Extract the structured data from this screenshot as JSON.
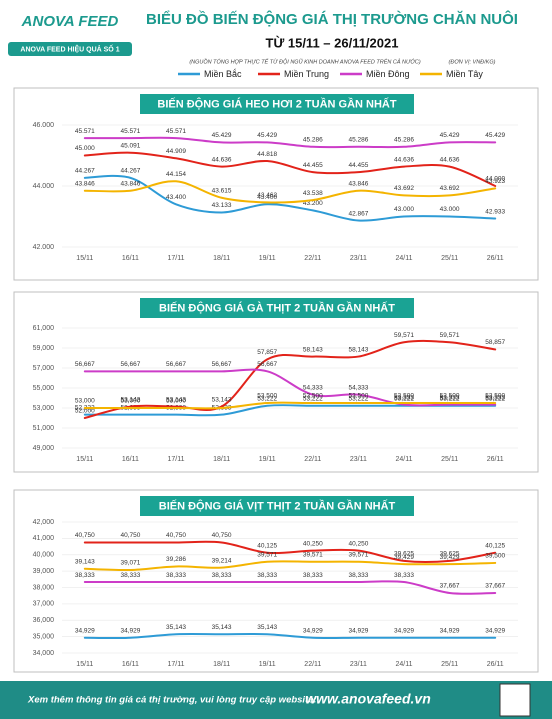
{
  "header": {
    "logo": "ANOVA FEED",
    "slogan": "ANOVA FEED HIỆU QUẢ SỐ 1",
    "title": "BIỂU ĐỒ BIẾN ĐỘNG GIÁ THỊ TRƯỜNG CHĂN NUÔI",
    "subtitle": "TỪ 15/11 – 26/11/2021",
    "source": "(NGUỒN TỔNG HỢP THỰC TẾ TỪ ĐỘI NGŨ KINH DOANH ANOVA FEED TRÊN CẢ NƯỚC)",
    "unit": "(ĐƠN VỊ: VNĐ/KG)"
  },
  "chart_data": [
    {
      "type": "line",
      "title": "BIẾN ĐỘNG GIÁ HEO HƠI 2 TUẦN GẦN NHẤT",
      "categories": [
        "15/11",
        "16/11",
        "17/11",
        "18/11",
        "19/11",
        "22/11",
        "23/11",
        "24/11",
        "25/11",
        "26/11"
      ],
      "series": [
        {
          "name": "Miền Bắc",
          "color": "#2e9bd6",
          "values": [
            44267,
            44267,
            43400,
            43133,
            43400,
            43200,
            42867,
            43000,
            43000,
            42933
          ],
          "value_labels": [
            "44.267",
            "44.267",
            "43.400",
            "43.133",
            "43.400",
            "43.200",
            "42.867",
            "43.000",
            "43.000",
            "42.933"
          ]
        },
        {
          "name": "Miền Trung",
          "color": "#e2231a",
          "values": [
            45000,
            45091,
            44909,
            44636,
            44818,
            44455,
            44455,
            44636,
            44636,
            44000
          ],
          "value_labels": [
            "45.000",
            "45.091",
            "44.909",
            "44.636",
            "44.818",
            "44.455",
            "44.455",
            "44.636",
            "44.636",
            "44.000"
          ]
        },
        {
          "name": "Miền Đông",
          "color": "#cc3cc8",
          "values": [
            45571,
            45571,
            45571,
            45429,
            45429,
            45286,
            45286,
            45286,
            45429,
            45429
          ],
          "value_labels": [
            "45.571",
            "45.571",
            "45.571",
            "45.429",
            "45.429",
            "45.286",
            "45.286",
            "45.286",
            "45.429",
            "45.429"
          ]
        },
        {
          "name": "Miền Tây",
          "color": "#f4b400",
          "values": [
            43846,
            43846,
            44154,
            43615,
            43462,
            43538,
            43846,
            43692,
            43692,
            43923
          ],
          "value_labels": [
            "43.846",
            "43.846",
            "44.154",
            "43.615",
            "43.462",
            "43.538",
            "43.846",
            "43.692",
            "43.692",
            "43.923"
          ]
        }
      ],
      "ylim": [
        42000,
        46000
      ],
      "yticks": [
        {
          "value": 42000,
          "label": "42.000"
        },
        {
          "value": 44000,
          "label": "44.000"
        },
        {
          "value": 46000,
          "label": "46.000"
        }
      ],
      "grid": true
    },
    {
      "type": "line",
      "title": "BIẾN ĐỘNG GIÁ GÀ THỊT 2 TUẦN GẦN NHẤT",
      "categories": [
        "15/11",
        "16/11",
        "17/11",
        "18/11",
        "19/11",
        "22/11",
        "23/11",
        "24/11",
        "25/11",
        "26/11"
      ],
      "series": [
        {
          "color": "#2e9bd6",
          "values": [
            52333,
            52333,
            52333,
            52333,
            53222,
            53222,
            53222,
            53222,
            53222,
            53222
          ],
          "value_labels": [
            "52,333",
            "52,333",
            "52,333",
            "52,333",
            "53,222",
            "53,222",
            "53,222",
            "53,222",
            "53,222",
            "53,222"
          ]
        },
        {
          "color": "#e2231a",
          "values": [
            52000,
            53143,
            53143,
            53143,
            57857,
            58143,
            58143,
            59571,
            59571,
            58857
          ],
          "value_labels": [
            "52,000",
            "53,143",
            "53,143",
            "53,143",
            "57,857",
            "58,143",
            "58,143",
            "59,571",
            "59,571",
            "58,857"
          ]
        },
        {
          "color": "#cc3cc8",
          "values": [
            56667,
            56667,
            56667,
            56667,
            56667,
            54333,
            54333,
            53333,
            53333,
            53333
          ],
          "value_labels": [
            "56,667",
            "56,667",
            "56,667",
            "56,667",
            "56,667",
            "54,333",
            "54,333",
            "53,333",
            "53,333",
            "53,333"
          ]
        },
        {
          "color": "#f4b400",
          "values": [
            53000,
            53000,
            53000,
            53000,
            53500,
            53500,
            53500,
            53500,
            53500,
            53500
          ],
          "value_labels": [
            "53,000",
            "53,000",
            "53,000",
            null,
            "53,500",
            "53,500",
            "53,500",
            "53,500",
            "53,500",
            "53,500"
          ]
        }
      ],
      "ylim": [
        49000,
        61000
      ],
      "yticks": [
        {
          "value": 49000,
          "label": "49,000"
        },
        {
          "value": 51000,
          "label": "51,000"
        },
        {
          "value": 53000,
          "label": "53,000"
        },
        {
          "value": 55000,
          "label": "55,000"
        },
        {
          "value": 57000,
          "label": "57,000"
        },
        {
          "value": 59000,
          "label": "59,000"
        },
        {
          "value": 61000,
          "label": "61,000"
        }
      ],
      "grid": true
    },
    {
      "type": "line",
      "title": "BIẾN ĐỘNG GIÁ VỊT THỊT 2 TUẦN GẦN NHẤT",
      "categories": [
        "15/11",
        "16/11",
        "17/11",
        "18/11",
        "19/11",
        "22/11",
        "23/11",
        "24/11",
        "25/11",
        "26/11"
      ],
      "series": [
        {
          "color": "#2e9bd6",
          "values": [
            34929,
            34929,
            35143,
            35143,
            35143,
            34929,
            34929,
            34929,
            34929,
            34929
          ],
          "value_labels": [
            "34,929",
            "34,929",
            "35,143",
            "35,143",
            "35,143",
            "34,929",
            "34,929",
            "34,929",
            "34,929",
            "34,929"
          ]
        },
        {
          "color": "#e2231a",
          "values": [
            40750,
            40750,
            40750,
            40750,
            40125,
            40250,
            40250,
            39625,
            39625,
            40125
          ],
          "value_labels": [
            "40,750",
            "40,750",
            "40,750",
            "40,750",
            "40,125",
            "40,250",
            "40,250",
            "39,625",
            "39,625",
            "40,125"
          ]
        },
        {
          "color": "#cc3cc8",
          "values": [
            38333,
            38333,
            38333,
            38333,
            38333,
            38333,
            38333,
            38333,
            37667,
            37667
          ],
          "value_labels": [
            "38,333",
            "38,333",
            "38,333",
            "38,333",
            "38,333",
            "38,333",
            "38,333",
            "38,333",
            "37,667",
            "37,667"
          ]
        },
        {
          "color": "#f4b400",
          "values": [
            39143,
            39071,
            39286,
            39214,
            39571,
            39571,
            39571,
            39429,
            39429,
            39500
          ],
          "value_labels": [
            "39,143",
            "39,071",
            "39,286",
            "39,214",
            "39,571",
            "39,571",
            "39,571",
            "39,429",
            "39,429",
            "39,500"
          ]
        }
      ],
      "ylim": [
        34000,
        42000
      ],
      "yticks": [
        {
          "value": 34000,
          "label": "34,000"
        },
        {
          "value": 35000,
          "label": "35,000"
        },
        {
          "value": 36000,
          "label": "36,000"
        },
        {
          "value": 37000,
          "label": "37,000"
        },
        {
          "value": 38000,
          "label": "38,000"
        },
        {
          "value": 39000,
          "label": "39,000"
        },
        {
          "value": 40000,
          "label": "40,000"
        },
        {
          "value": 41000,
          "label": "41,000"
        },
        {
          "value": 42000,
          "label": "42,000"
        }
      ],
      "grid": true
    }
  ],
  "footer": {
    "text": "Xem thêm thông tin giá cả thị trường, vui lòng truy cập website:",
    "website": "www.anovafeed.vn"
  }
}
